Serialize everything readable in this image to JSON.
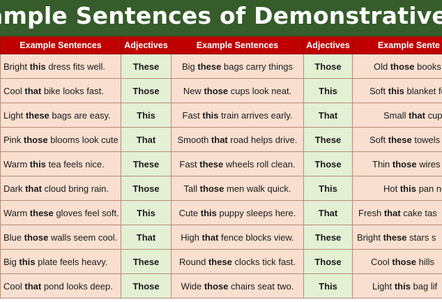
{
  "title": "ample Sentences of Demonstrative Adjec",
  "headers": {
    "sentences": "Example Sentences",
    "adjectives": "Adjectives",
    "sentences3": "Example Sente"
  },
  "rows": [
    {
      "s1": [
        "Bright ",
        "this",
        " dress fits well."
      ],
      "a1": "These",
      "s2": [
        "Big ",
        "these",
        " bags carry things"
      ],
      "a2": "Those",
      "s3": [
        "Old ",
        "those",
        " books t"
      ]
    },
    {
      "s1": [
        "Cool ",
        "that",
        " bike looks fast."
      ],
      "a1": "Those",
      "s2": [
        "New ",
        "those",
        " cups look neat."
      ],
      "a2": "This",
      "s3": [
        "Soft ",
        "this",
        " blanket fe"
      ]
    },
    {
      "s1": [
        "Light ",
        "these",
        " bags are easy."
      ],
      "a1": "This",
      "s2": [
        "Fast ",
        "this",
        " train arrives early."
      ],
      "a2": "That",
      "s3": [
        "Small ",
        "that",
        " cup h"
      ]
    },
    {
      "s1": [
        "Pink ",
        "those",
        " blooms look cute"
      ],
      "a1": "That",
      "s2": [
        "Smooth ",
        "that",
        " road helps drive."
      ],
      "a2": "These",
      "s3": [
        "Soft ",
        "these",
        " towels"
      ]
    },
    {
      "s1": [
        "Warm ",
        "this",
        " tea feels nice."
      ],
      "a1": "These",
      "s2": [
        "Fast ",
        "these",
        " wheels roll clean."
      ],
      "a2": "Those",
      "s3": [
        "Thin ",
        "those",
        " wires b"
      ]
    },
    {
      "s1": [
        "Dark ",
        "that",
        " cloud bring rain."
      ],
      "a1": "Those",
      "s2": [
        "Tall ",
        "those",
        " men walk quick."
      ],
      "a2": "This",
      "s3": [
        "Hot ",
        "this",
        " pan nee"
      ]
    },
    {
      "s1": [
        "Warm ",
        "these",
        " gloves feel soft."
      ],
      "a1": "This",
      "s2": [
        "Cute ",
        "this",
        " puppy sleeps here."
      ],
      "a2": "That",
      "s3": [
        "Fresh ",
        "that",
        " cake tas"
      ]
    },
    {
      "s1": [
        "Blue ",
        "those",
        " walls seem cool."
      ],
      "a1": "That",
      "s2": [
        "High ",
        "that",
        " fence blocks view."
      ],
      "a2": "These",
      "s3": [
        "Bright ",
        "these",
        " stars s"
      ]
    },
    {
      "s1": [
        "Big ",
        "this",
        " plate feels heavy."
      ],
      "a1": "These",
      "s2": [
        "Round ",
        "these",
        " clocks tick fast."
      ],
      "a2": "Those",
      "s3": [
        "Cool ",
        "those",
        " hills"
      ]
    },
    {
      "s1": [
        "Cool ",
        "that",
        " pond looks deep."
      ],
      "a1": "Those",
      "s2": [
        "Wide ",
        "those",
        " chairs seat two."
      ],
      "a2": "This",
      "s3": [
        "Light ",
        "this",
        " bag lif"
      ]
    }
  ]
}
